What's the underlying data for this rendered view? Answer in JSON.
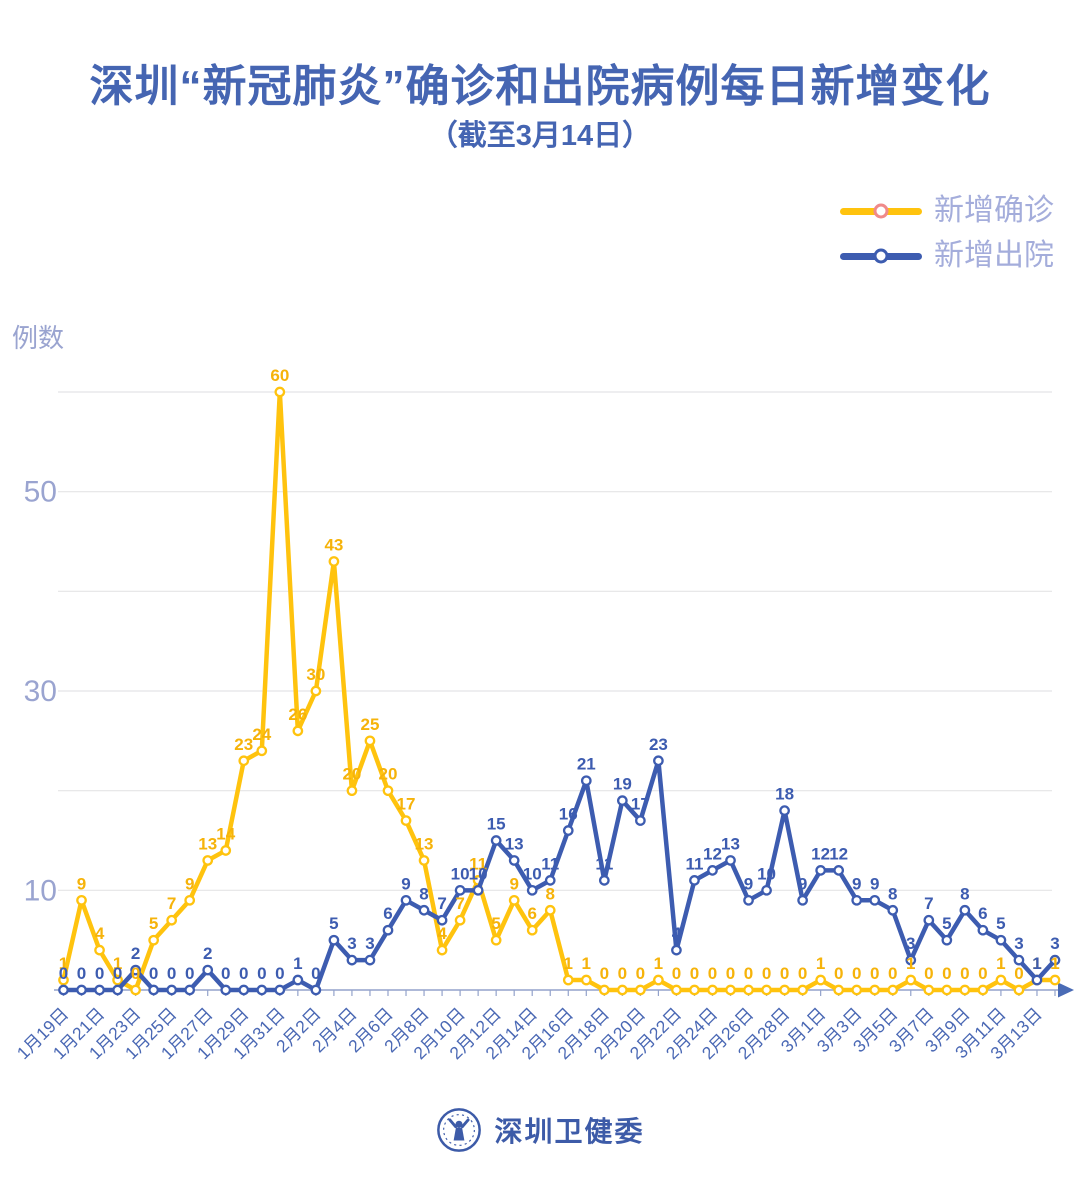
{
  "title": "深圳“新冠肺炎”确诊和出院病例每日新增变化",
  "subtitle": "（截至3月14日）",
  "y_axis_name": "例数",
  "legend": [
    {
      "label": "新增确诊",
      "line_color": "#FFC30E",
      "marker_stroke": "#F08A8A"
    },
    {
      "label": "新增出院",
      "line_color": "#3D5CB0",
      "marker_stroke": "#3D5CB0"
    }
  ],
  "footer": {
    "brand": "深圳卫健委"
  },
  "colors": {
    "title": "#4565B2",
    "legend_text": "#A4ADDB",
    "y_axis_text": "#9AA4D0",
    "x_tick_text": "#4A68B4",
    "grid": "#E4E4E6",
    "baseline": "#93A2CB",
    "arrow": "#4A6BB5",
    "confirmed": "#FFC30E",
    "confirmed_label": "#F6B30A",
    "discharged": "#3D5CB0",
    "footer": "#3D5BA8"
  },
  "chart_data": {
    "type": "line",
    "title": "深圳“新冠肺炎”确诊和出院病例每日新增变化（截至3月14日）",
    "ylabel": "例数",
    "ylim": [
      0,
      60
    ],
    "y_ticks_labeled": [
      10,
      30,
      50
    ],
    "gridline_values": [
      10,
      20,
      30,
      40,
      50,
      60
    ],
    "x_label_step": 2,
    "legend_position": "top-right",
    "x": [
      "1月19日",
      "1月20日",
      "1月21日",
      "1月22日",
      "1月23日",
      "1月24日",
      "1月25日",
      "1月26日",
      "1月27日",
      "1月28日",
      "1月29日",
      "1月30日",
      "1月31日",
      "2月1日",
      "2月2日",
      "2月3日",
      "2月4日",
      "2月5日",
      "2月6日",
      "2月7日",
      "2月8日",
      "2月9日",
      "2月10日",
      "2月11日",
      "2月12日",
      "2月13日",
      "2月14日",
      "2月15日",
      "2月16日",
      "2月17日",
      "2月18日",
      "2月19日",
      "2月20日",
      "2月21日",
      "2月22日",
      "2月23日",
      "2月24日",
      "2月25日",
      "2月26日",
      "2月27日",
      "2月28日",
      "2月29日",
      "3月1日",
      "3月2日",
      "3月3日",
      "3月4日",
      "3月5日",
      "3月6日",
      "3月7日",
      "3月8日",
      "3月9日",
      "3月10日",
      "3月11日",
      "3月12日",
      "3月13日",
      "3月14日"
    ],
    "series": [
      {
        "name": "新增确诊",
        "values": [
          1,
          9,
          4,
          1,
          0,
          5,
          7,
          9,
          13,
          14,
          23,
          24,
          60,
          26,
          30,
          43,
          20,
          25,
          20,
          17,
          13,
          4,
          7,
          11,
          5,
          9,
          6,
          8,
          1,
          1,
          0,
          0,
          0,
          1,
          0,
          0,
          0,
          0,
          0,
          0,
          0,
          0,
          1,
          0,
          0,
          0,
          0,
          1,
          0,
          0,
          0,
          0,
          1,
          0,
          1,
          1
        ]
      },
      {
        "name": "新增出院",
        "values": [
          0,
          0,
          0,
          0,
          2,
          0,
          0,
          0,
          2,
          0,
          0,
          0,
          0,
          1,
          0,
          5,
          3,
          3,
          6,
          9,
          8,
          7,
          10,
          10,
          15,
          13,
          10,
          11,
          16,
          21,
          11,
          19,
          17,
          23,
          4,
          11,
          12,
          13,
          9,
          10,
          18,
          9,
          12,
          12,
          9,
          9,
          8,
          3,
          7,
          5,
          8,
          6,
          5,
          3,
          1,
          3
        ]
      }
    ]
  }
}
